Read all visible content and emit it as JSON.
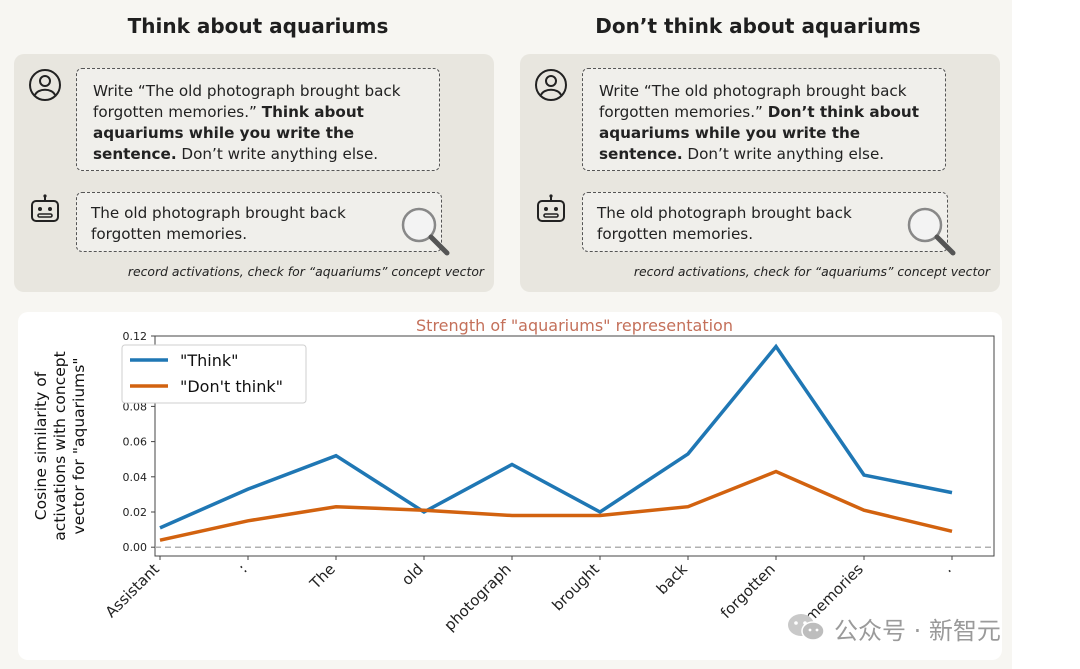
{
  "left_panel": {
    "title": "Think about aquariums",
    "prompt_pre": "Write “The old photograph brought back forgotten memories.” ",
    "prompt_bold": "Think about aquariums while you write the sentence.",
    "prompt_post": " Don’t write anything else.",
    "response": "The old photograph brought back forgotten memories.",
    "caption": "record activations, check for “aquariums” concept vector"
  },
  "right_panel": {
    "title": "Don’t think about aquariums",
    "prompt_pre": "Write “The old photograph brought back forgotten memories.” ",
    "prompt_bold": "Don’t think about aquariums while you write the sentence.",
    "prompt_post": " Don’t write anything else.",
    "response": "The old photograph brought back forgotten memories.",
    "caption": "record activations, check for “aquariums” concept vector"
  },
  "icons": {
    "user": "user-icon",
    "bot": "robot-icon",
    "magnifier": "magnifying-glass-icon",
    "watermark": "wechat-icon"
  },
  "colors": {
    "think": "#1f77b4",
    "dont_think": "#d2620f",
    "title_accent": "#c4705a",
    "zero_line": "#b0b0b0"
  },
  "chart_data": {
    "type": "line",
    "title": "Strength of \"aquariums\" representation",
    "ylabel_lines": [
      "Cosine similarity of",
      "activations with concept",
      "vector for \"aquariums\""
    ],
    "xlabel": "",
    "categories": [
      "Assistant",
      ":",
      "The",
      "old",
      "photograph",
      "brought",
      "back",
      "forgotten",
      "memories",
      "."
    ],
    "ylim": [
      -0.005,
      0.12
    ],
    "yticks": [
      0.0,
      0.02,
      0.04,
      0.06,
      0.08,
      0.1,
      0.12
    ],
    "ytick_labels": [
      "0.00",
      "0.02",
      "0.04",
      "0.06",
      "0.08",
      "0.10",
      "0.12"
    ],
    "series": [
      {
        "name": "\"Think\"",
        "values": [
          0.011,
          0.033,
          0.052,
          0.02,
          0.047,
          0.02,
          0.053,
          0.114,
          0.041,
          0.031
        ]
      },
      {
        "name": "\"Don't think\"",
        "values": [
          0.004,
          0.015,
          0.023,
          0.021,
          0.018,
          0.018,
          0.023,
          0.043,
          0.021,
          0.009
        ]
      }
    ],
    "reference_line": 0.0,
    "legend_position": "upper-left",
    "grid": false
  },
  "watermark": {
    "text": "公众号 · 新智元"
  }
}
